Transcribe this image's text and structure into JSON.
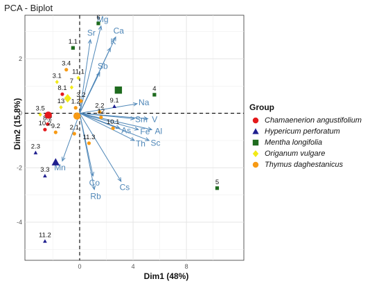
{
  "chart_data": {
    "type": "scatter",
    "title": "PCA - Biplot",
    "xlabel": "Dim1 (48%)",
    "ylabel": "Dim2 (15.8%)",
    "xlim": [
      -4.1,
      12.3
    ],
    "ylim": [
      -5.4,
      3.6
    ],
    "x_ticks": [
      0,
      4,
      8
    ],
    "y_ticks": [
      -4,
      -2,
      0,
      2
    ],
    "grid": true,
    "reference_lines": {
      "x": 0,
      "y": 0,
      "style": "dashed"
    },
    "legend": {
      "title": "Group",
      "position": "right",
      "entries": [
        {
          "name": "Chamaenerion angustifolium",
          "color": "#e41a1c",
          "shape": "circle"
        },
        {
          "name": "Hypericum perforatum",
          "color": "#1f1f8f",
          "shape": "triangle"
        },
        {
          "name": "Mentha longifolia",
          "color": "#1e6b1e",
          "shape": "square"
        },
        {
          "name": "Origanum vulgare",
          "color": "#f2ea16",
          "shape": "diamond"
        },
        {
          "name": "Thymus daghestanicus",
          "color": "#f79a14",
          "shape": "circle"
        }
      ]
    },
    "points": [
      {
        "label": "6",
        "x": 1.4,
        "y": 3.3,
        "group": 2
      },
      {
        "label": "1.1",
        "x": -0.5,
        "y": 2.4,
        "group": 2
      },
      {
        "label": "3.4",
        "x": -1.0,
        "y": 1.6,
        "group": 4
      },
      {
        "label": "11.1",
        "x": -0.1,
        "y": 1.3,
        "group": 3
      },
      {
        "label": "7",
        "x": -0.6,
        "y": 0.95,
        "group": 3
      },
      {
        "label": "3.1",
        "x": -1.7,
        "y": 1.15,
        "group": 3
      },
      {
        "label": "8.1",
        "x": -1.3,
        "y": 0.7,
        "group": 0
      },
      {
        "label": "3.2",
        "x": 0.1,
        "y": 0.45,
        "group": 4
      },
      {
        "label": "1.2",
        "x": -0.3,
        "y": 0.2,
        "group": 4
      },
      {
        "label": "13",
        "x": -1.4,
        "y": 0.22,
        "group": 3
      },
      {
        "label": "3.5",
        "x": -2.95,
        "y": -0.05,
        "group": 3
      },
      {
        "label": "8.2",
        "x": -2.4,
        "y": -0.4,
        "group": 0
      },
      {
        "label": "10.2",
        "x": -2.6,
        "y": -0.6,
        "group": 0
      },
      {
        "label": "9.2",
        "x": -1.8,
        "y": -0.7,
        "group": 4
      },
      {
        "label": "2.1",
        "x": -0.4,
        "y": -0.75,
        "group": 4
      },
      {
        "label": "2.2",
        "x": 1.5,
        "y": 0.05,
        "group": 4
      },
      {
        "label": "9.1",
        "x": 2.6,
        "y": 0.25,
        "group": 1
      },
      {
        "label": "12",
        "x": 1.6,
        "y": -0.15,
        "group": 4
      },
      {
        "label": "10.1",
        "x": 2.5,
        "y": -0.55,
        "group": 4
      },
      {
        "label": "11.3",
        "x": 0.7,
        "y": -1.1,
        "group": 4
      },
      {
        "label": "4",
        "x": 5.6,
        "y": 0.68,
        "group": 2
      },
      {
        "label": "2.3",
        "x": -3.3,
        "y": -1.45,
        "group": 1
      },
      {
        "label": "3.3",
        "x": -2.6,
        "y": -2.3,
        "group": 1
      },
      {
        "label": "11.2",
        "x": -2.6,
        "y": -4.7,
        "group": 1
      },
      {
        "label": "5",
        "x": 10.3,
        "y": -2.75,
        "group": 2
      }
    ],
    "group_centroids": [
      {
        "group": 0,
        "x": -2.35,
        "y": -0.07
      },
      {
        "group": 1,
        "x": -1.8,
        "y": -1.8
      },
      {
        "group": 2,
        "x": 2.9,
        "y": 0.85
      },
      {
        "group": 3,
        "x": -0.9,
        "y": 0.55
      },
      {
        "group": 4,
        "x": -0.2,
        "y": -0.1
      }
    ],
    "variables": [
      {
        "name": "Mg",
        "x": 1.6,
        "y": 3.2
      },
      {
        "name": "Ca",
        "x": 2.7,
        "y": 2.8
      },
      {
        "name": "Sr",
        "x": 0.8,
        "y": 2.7
      },
      {
        "name": "K",
        "x": 2.3,
        "y": 2.4
      },
      {
        "name": "Sb",
        "x": 1.5,
        "y": 1.5
      },
      {
        "name": "Na",
        "x": 4.3,
        "y": 0.35
      },
      {
        "name": "Sm",
        "x": 4.1,
        "y": -0.2
      },
      {
        "name": "V",
        "x": 5.1,
        "y": -0.2
      },
      {
        "name": "Fe",
        "x": 4.4,
        "y": -0.6
      },
      {
        "name": "Al",
        "x": 5.4,
        "y": -0.6
      },
      {
        "name": "Th",
        "x": 4.1,
        "y": -1.0
      },
      {
        "name": "Sc",
        "x": 5.2,
        "y": -1.0
      },
      {
        "name": "As",
        "x": 3.0,
        "y": -0.55
      },
      {
        "name": "Mn",
        "x": -1.3,
        "y": -1.75
      },
      {
        "name": "Co",
        "x": 1.0,
        "y": -2.3
      },
      {
        "name": "Cs",
        "x": 3.1,
        "y": -2.5
      },
      {
        "name": "Rb",
        "x": 1.1,
        "y": -2.8
      }
    ]
  }
}
